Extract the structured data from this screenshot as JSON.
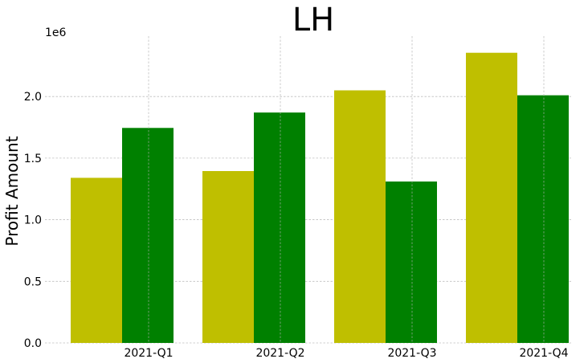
{
  "chart_data": {
    "type": "bar",
    "title": "LH",
    "xlabel": "",
    "ylabel": "Profit Amount",
    "offset_label": "1e6",
    "categories": [
      "2021-Q1",
      "2021-Q2",
      "2021-Q3",
      "2021-Q4"
    ],
    "series": [
      {
        "color": "#bfbf00",
        "values": [
          1340000,
          1395000,
          2050000,
          2355000
        ]
      },
      {
        "color": "#008000",
        "values": [
          1745000,
          1870000,
          1310000,
          2010000
        ]
      }
    ],
    "ylim": [
      0,
      2490000
    ],
    "yticks": [
      0,
      500000,
      1000000,
      1500000,
      2000000
    ],
    "ytick_labels": [
      "0.0",
      "0.5",
      "1.0",
      "1.5",
      "2.0"
    ],
    "grid": true,
    "legend": "none"
  }
}
